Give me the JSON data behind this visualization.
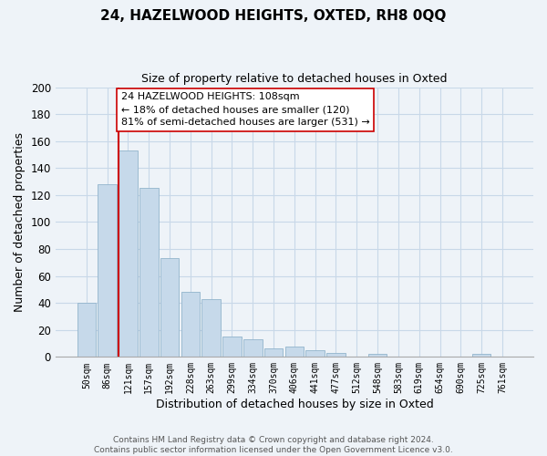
{
  "title": "24, HAZELWOOD HEIGHTS, OXTED, RH8 0QQ",
  "subtitle": "Size of property relative to detached houses in Oxted",
  "xlabel": "Distribution of detached houses by size in Oxted",
  "ylabel": "Number of detached properties",
  "bar_labels": [
    "50sqm",
    "86sqm",
    "121sqm",
    "157sqm",
    "192sqm",
    "228sqm",
    "263sqm",
    "299sqm",
    "334sqm",
    "370sqm",
    "406sqm",
    "441sqm",
    "477sqm",
    "512sqm",
    "548sqm",
    "583sqm",
    "619sqm",
    "654sqm",
    "690sqm",
    "725sqm",
    "761sqm"
  ],
  "bar_values": [
    40,
    128,
    153,
    125,
    73,
    48,
    43,
    15,
    13,
    6,
    8,
    5,
    3,
    0,
    2,
    0,
    0,
    0,
    0,
    2,
    0
  ],
  "bar_color": "#c6d9ea",
  "bar_edge_color": "#92b4cc",
  "vline_color": "#cc0000",
  "ylim": [
    0,
    200
  ],
  "yticks": [
    0,
    20,
    40,
    60,
    80,
    100,
    120,
    140,
    160,
    180,
    200
  ],
  "annotation_title": "24 HAZELWOOD HEIGHTS: 108sqm",
  "annotation_line1": "← 18% of detached houses are smaller (120)",
  "annotation_line2": "81% of semi-detached houses are larger (531) →",
  "footer1": "Contains HM Land Registry data © Crown copyright and database right 2024.",
  "footer2": "Contains public sector information licensed under the Open Government Licence v3.0.",
  "grid_color": "#c8d8e8",
  "bg_color": "#eef3f8"
}
